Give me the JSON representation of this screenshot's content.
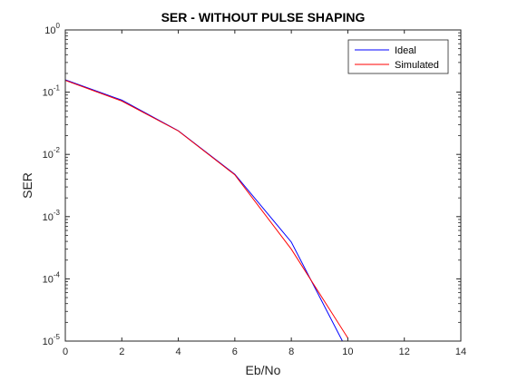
{
  "chart_data": {
    "type": "line",
    "title": "SER - WITHOUT PULSE SHAPING",
    "xlabel": "Eb/No",
    "ylabel": "SER",
    "xlim": [
      0,
      14
    ],
    "ylim": [
      1e-05,
      1
    ],
    "yscale": "log",
    "grid": false,
    "legend_position": "top-right",
    "x_ticks": [
      "0",
      "2",
      "4",
      "6",
      "8",
      "10",
      "12",
      "14"
    ],
    "y_ticks": [
      {
        "base": "10",
        "exp": "0",
        "value": 1
      },
      {
        "base": "10",
        "exp": "-1",
        "value": 0.1
      },
      {
        "base": "10",
        "exp": "-2",
        "value": 0.01
      },
      {
        "base": "10",
        "exp": "-3",
        "value": 0.001
      },
      {
        "base": "10",
        "exp": "-4",
        "value": 0.0001
      },
      {
        "base": "10",
        "exp": "-5",
        "value": 1e-05
      }
    ],
    "series": [
      {
        "name": "Ideal",
        "color": "#0000ff",
        "x": [
          0,
          2,
          4,
          6,
          8,
          10
        ],
        "y": [
          0.158,
          0.0745,
          0.024,
          0.0048,
          0.00039,
          6.8e-06
        ]
      },
      {
        "name": "Simulated",
        "color": "#ff0000",
        "x": [
          0,
          2,
          4,
          6,
          8,
          10
        ],
        "y": [
          0.155,
          0.072,
          0.0238,
          0.0047,
          0.0003,
          1.12e-05
        ]
      }
    ]
  }
}
